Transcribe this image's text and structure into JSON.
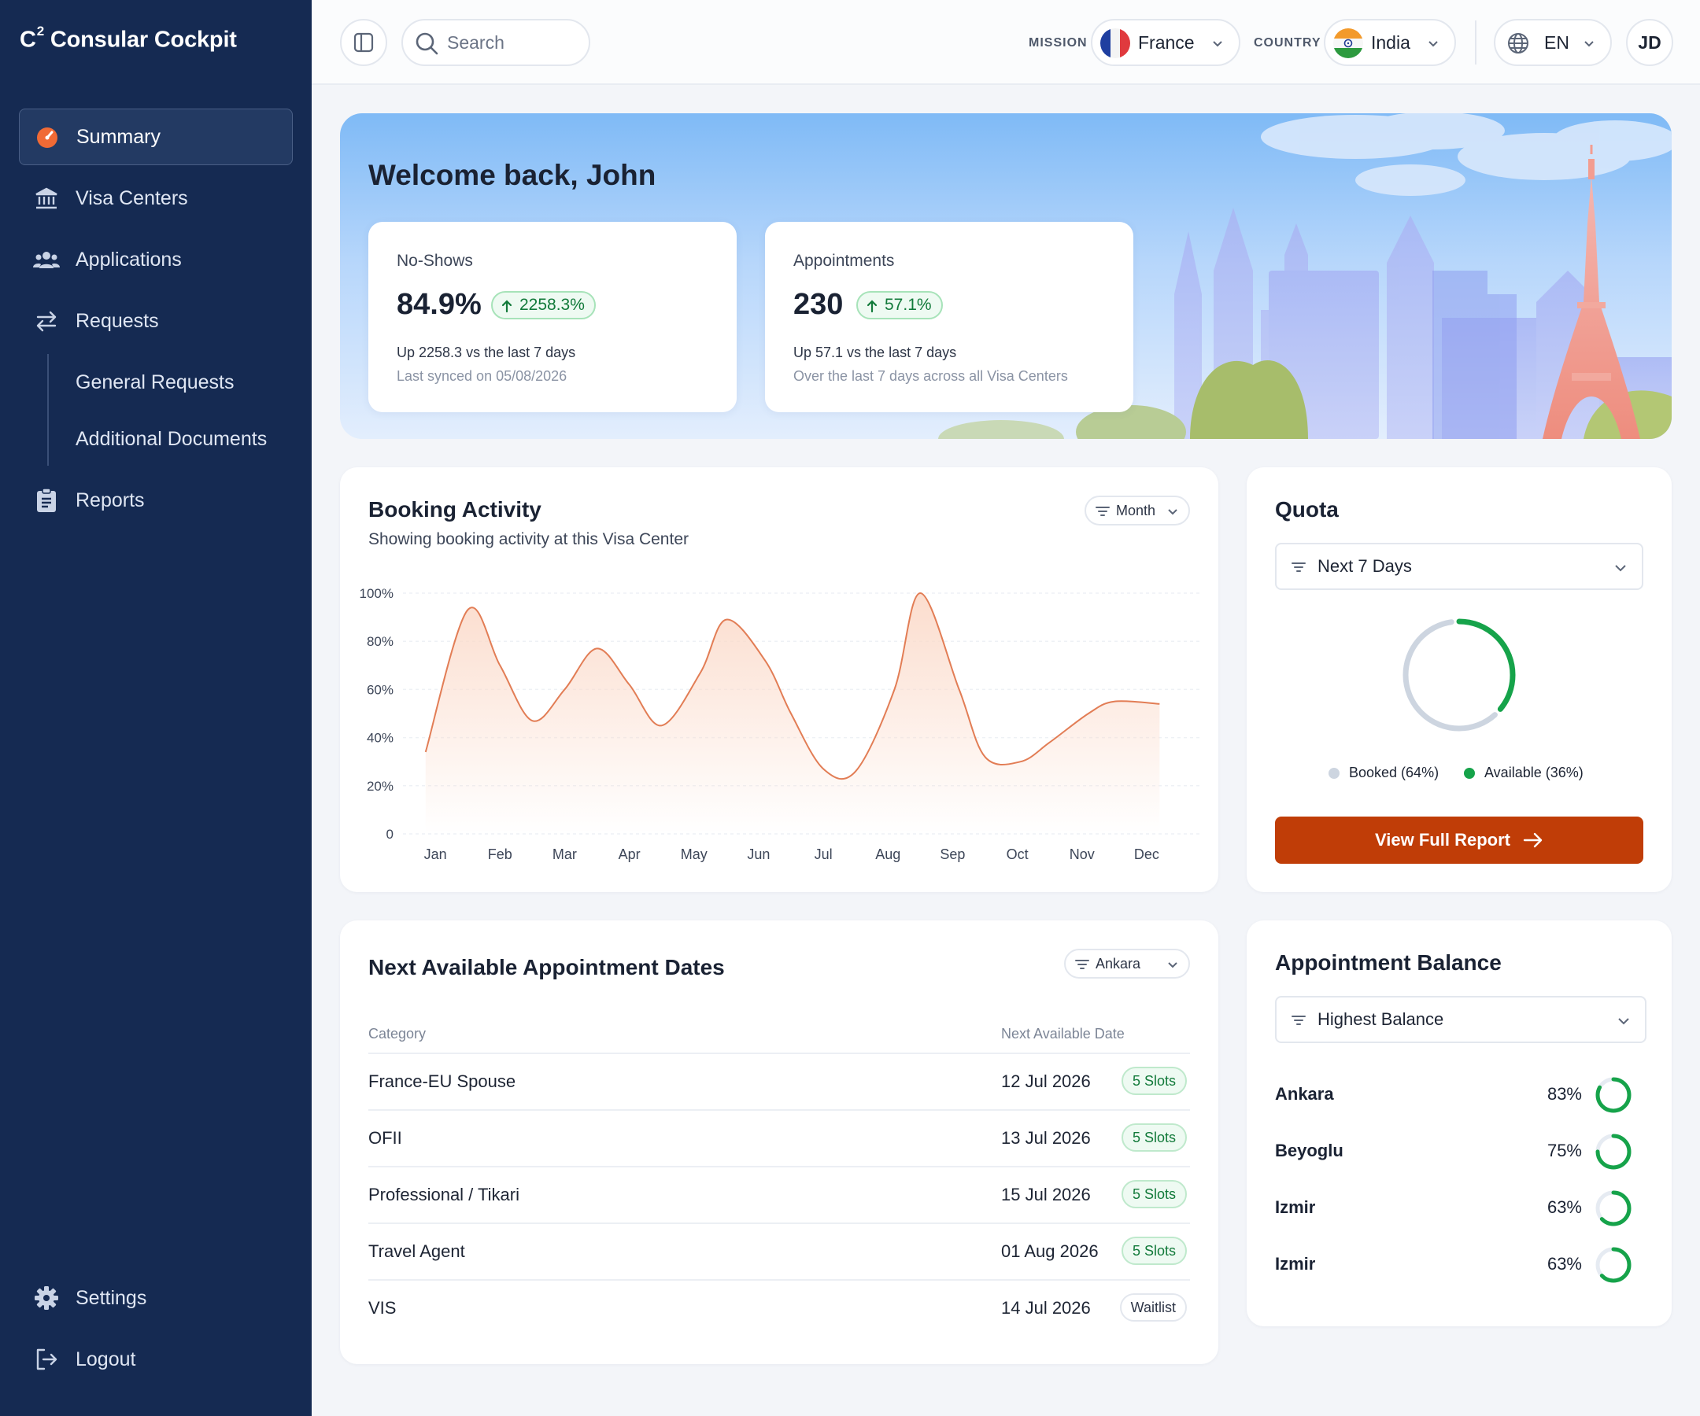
{
  "sidebar": {
    "brand": "C² Consular Cockpit",
    "brand_main": "C",
    "brand_sup": "2",
    "brand_rest": " Consular Cockpit",
    "items": [
      {
        "label": "Summary"
      },
      {
        "label": "Visa Centers"
      },
      {
        "label": "Applications"
      },
      {
        "label": "Requests"
      },
      {
        "label": "General Requests"
      },
      {
        "label": "Additional Documents"
      },
      {
        "label": "Reports"
      }
    ],
    "footer": [
      {
        "label": "Settings"
      },
      {
        "label": "Logout"
      }
    ],
    "accent_color": "#f06a35"
  },
  "topbar": {
    "search_placeholder": "Search",
    "mission_label": "MISSION",
    "mission_value": "France",
    "country_label": "COUNTRY",
    "country_value": "India",
    "language": "EN",
    "avatar_initials": "JD"
  },
  "hero": {
    "title": "Welcome back, John",
    "stats": [
      {
        "label": "No-Shows",
        "value": "84.9%",
        "badge": "2258.3%",
        "sub": "Up 2258.3 vs the last 7 days",
        "note": "Last synced on 05/08/2026"
      },
      {
        "label": "Appointments",
        "value": "230",
        "badge": "57.1%",
        "sub": "Up 57.1 vs the last 7 days",
        "note": "Over the last 7 days across all Visa Centers"
      }
    ]
  },
  "booking": {
    "title": "Booking Activity",
    "subtitle": "Showing booking activity at this Visa Center",
    "filter": "Month"
  },
  "chart_data": {
    "type": "area",
    "categories": [
      "Jan",
      "Feb",
      "Mar",
      "Apr",
      "May",
      "Jun",
      "Jul",
      "Aug",
      "Sep",
      "Oct",
      "Nov",
      "Dec"
    ],
    "y_ticks": [
      "100%",
      "80%",
      "60%",
      "40%",
      "20%",
      "0"
    ],
    "y_tick_values": [
      100,
      80,
      60,
      40,
      20,
      0
    ],
    "ylim": [
      0,
      100
    ],
    "series": [
      {
        "x": [
          0.35,
          1,
          1.5,
          2,
          2.5,
          3,
          3.5,
          4,
          4.6,
          5,
          5.6,
          6,
          6.5,
          7,
          7.6,
          8,
          8.6,
          9,
          9.55,
          10,
          10.6,
          11,
          11.7
        ],
        "values": [
          34,
          93,
          70,
          47,
          60,
          77,
          62,
          45,
          67,
          89,
          72,
          50,
          27,
          26,
          60,
          100,
          60,
          32,
          30,
          38,
          50,
          55,
          54
        ]
      }
    ],
    "line_color": "#e27d55",
    "fill_color": "#fbd9c8",
    "grid": true
  },
  "quota": {
    "title": "Quota",
    "filter": "Next 7 Days",
    "booked_label": "Booked (64%)",
    "available_label": "Available (36%)",
    "booked_pct": 64,
    "available_pct": 36,
    "booked_color": "#cdd5e0",
    "available_color": "#16a34a",
    "button": "View Full Report"
  },
  "appointments": {
    "title": "Next Available Appointment Dates",
    "filter": "Ankara",
    "columns": [
      "Category",
      "Next Available Date"
    ],
    "rows": [
      {
        "category": "France-EU Spouse",
        "date": "12 Jul 2026",
        "status": "5 Slots",
        "kind": "green"
      },
      {
        "category": "OFII",
        "date": "13 Jul 2026",
        "status": "5 Slots",
        "kind": "green"
      },
      {
        "category": "Professional / Tikari",
        "date": "15 Jul 2026",
        "status": "5 Slots",
        "kind": "green"
      },
      {
        "category": "Travel Agent",
        "date": "01 Aug 2026",
        "status": "5 Slots",
        "kind": "green"
      },
      {
        "category": "VIS",
        "date": "14 Jul 2026",
        "status": "Waitlist",
        "kind": "grey"
      }
    ]
  },
  "balance": {
    "title": "Appointment Balance",
    "filter": "Highest Balance",
    "rows": [
      {
        "name": "Ankara",
        "pct_label": "83%",
        "pct": 83
      },
      {
        "name": "Beyoglu",
        "pct_label": "75%",
        "pct": 75
      },
      {
        "name": "Izmir",
        "pct_label": "63%",
        "pct": 63
      },
      {
        "name": "Izmir",
        "pct_label": "63%",
        "pct": 63
      }
    ],
    "ring_color": "#16a34a"
  }
}
